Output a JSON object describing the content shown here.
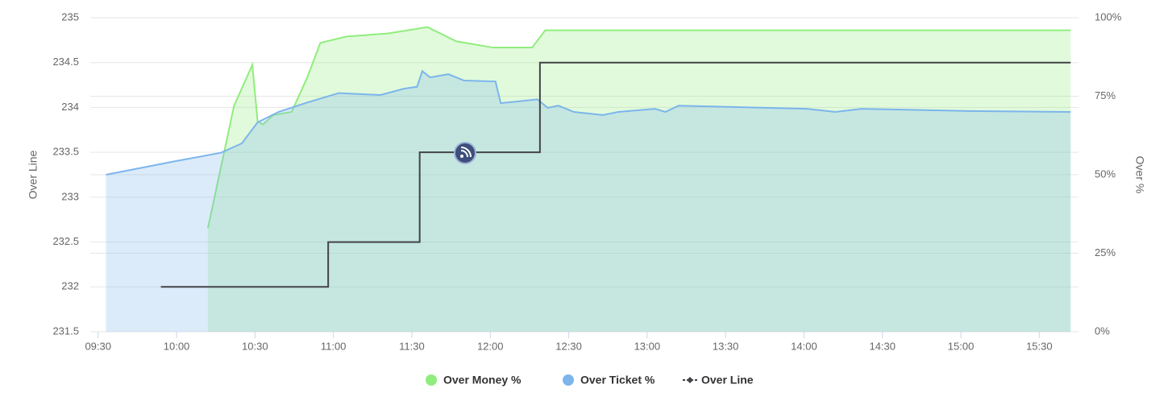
{
  "chart_data": {
    "type": "line",
    "y_label": "Over Line",
    "y2_label": "Over %",
    "xlim": [
      "09:27",
      "15:45"
    ],
    "xticks": [
      "09:30",
      "10:00",
      "10:30",
      "11:00",
      "11:30",
      "12:00",
      "12:30",
      "13:00",
      "13:30",
      "14:00",
      "14:30",
      "15:00",
      "15:30"
    ],
    "ylim": [
      231.5,
      235
    ],
    "yticks": [
      231.5,
      232,
      232.5,
      233,
      233.5,
      234,
      234.5,
      235
    ],
    "y2lim": [
      0,
      100
    ],
    "y2ticks": [
      {
        "value": 0,
        "label": "0%"
      },
      {
        "value": 25,
        "label": "25%"
      },
      {
        "value": 50,
        "label": "50%"
      },
      {
        "value": 75,
        "label": "75%"
      },
      {
        "value": 100,
        "label": "100%"
      }
    ],
    "grid": true,
    "legend": "bottom",
    "series": [
      {
        "name": "Over Money %",
        "color": "#90ed7d",
        "fill": "#90ed7d",
        "kind": "area",
        "axis": "y2",
        "x": [
          "10:12",
          "10:22",
          "10:29",
          "10:31",
          "10:33",
          "10:37",
          "10:44",
          "10:50",
          "10:55",
          "11:05",
          "11:21",
          "11:36",
          "11:47",
          "12:01",
          "12:16",
          "12:21",
          "15:42"
        ],
        "values": [
          33,
          72,
          85,
          67,
          66,
          69,
          70,
          81,
          92,
          94,
          95,
          97,
          92.5,
          90.5,
          90.5,
          96,
          96
        ]
      },
      {
        "name": "Over Ticket %",
        "color": "#7cb5ec",
        "fill": "#7cb5ec",
        "kind": "area",
        "axis": "y2",
        "x": [
          "09:33",
          "10:00",
          "10:17",
          "10:25",
          "10:31",
          "10:39",
          "10:50",
          "11:02",
          "11:18",
          "11:27",
          "11:32",
          "11:34",
          "11:37",
          "11:44",
          "11:50",
          "12:02",
          "12:04",
          "12:10",
          "12:18",
          "12:22",
          "12:26",
          "12:32",
          "12:43",
          "12:49",
          "13:03",
          "13:07",
          "13:12",
          "14:01",
          "14:12",
          "14:22",
          "15:03",
          "15:42"
        ],
        "values": [
          50,
          54.4,
          57,
          60,
          66.7,
          70,
          73,
          76,
          75.4,
          77.4,
          78,
          83,
          81,
          82,
          80,
          79.7,
          72.8,
          73.3,
          74,
          71.3,
          72,
          70,
          69,
          70,
          71,
          70,
          72,
          71,
          70,
          71,
          70.3,
          70
        ]
      },
      {
        "name": "Over Line",
        "color": "#434348",
        "kind": "step",
        "x": [
          "09:54",
          "10:58",
          "11:33",
          "12:19",
          "15:42"
        ],
        "values": [
          232,
          232.5,
          233.5,
          234.5,
          234.5
        ]
      }
    ]
  }
}
